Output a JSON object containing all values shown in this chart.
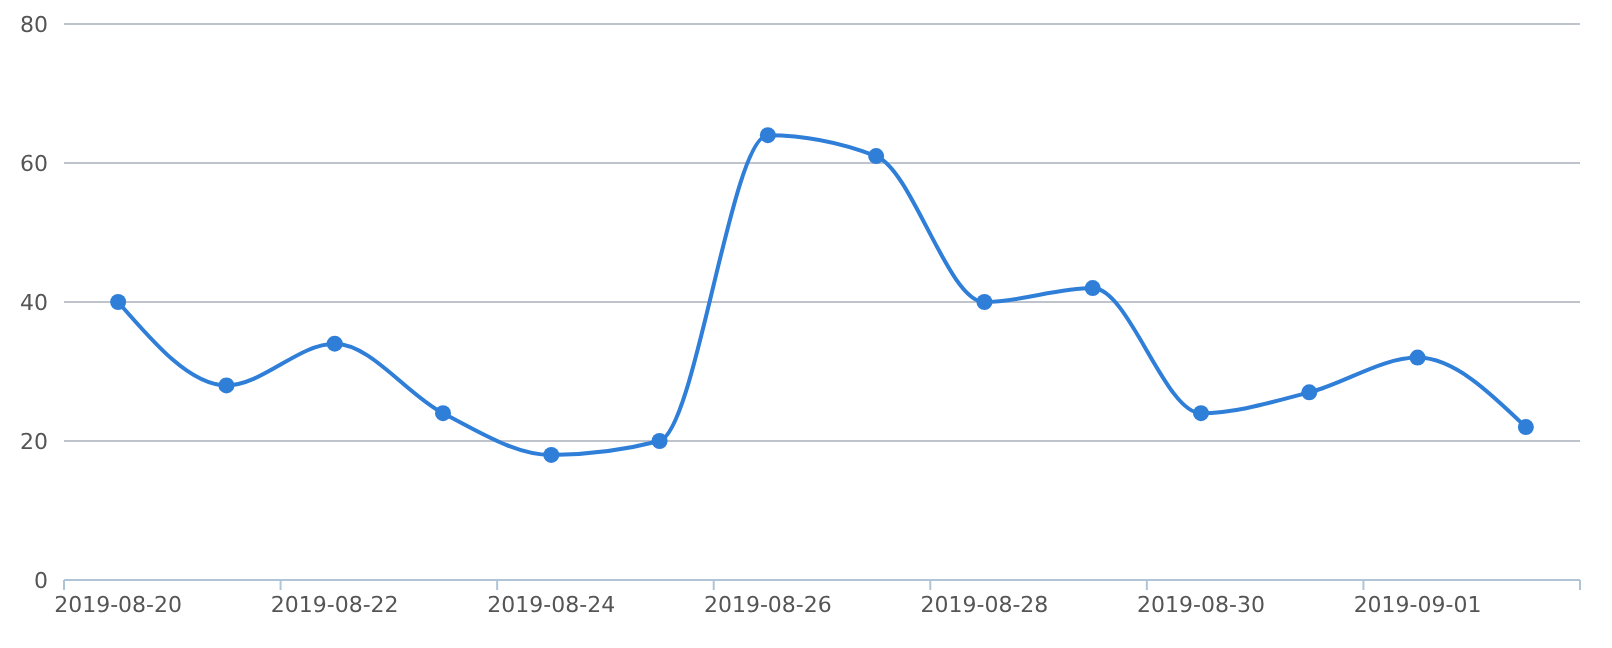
{
  "chart_data": {
    "type": "line",
    "categories": [
      "2019-08-20",
      null,
      "2019-08-22",
      null,
      "2019-08-24",
      null,
      "2019-08-26",
      null,
      "2019-08-28",
      null,
      "2019-08-30",
      null,
      "2019-09-01",
      null
    ],
    "series": [
      {
        "color": "#2f7ed8",
        "values": [
          40,
          28,
          34,
          24,
          18,
          20,
          64,
          61,
          40,
          42,
          24,
          27,
          32,
          22
        ]
      }
    ],
    "ylim": [
      0,
      80
    ],
    "yticks": [
      0,
      20,
      40,
      60,
      80
    ],
    "grid": "y",
    "marker": "circle",
    "line_style": "solid"
  }
}
